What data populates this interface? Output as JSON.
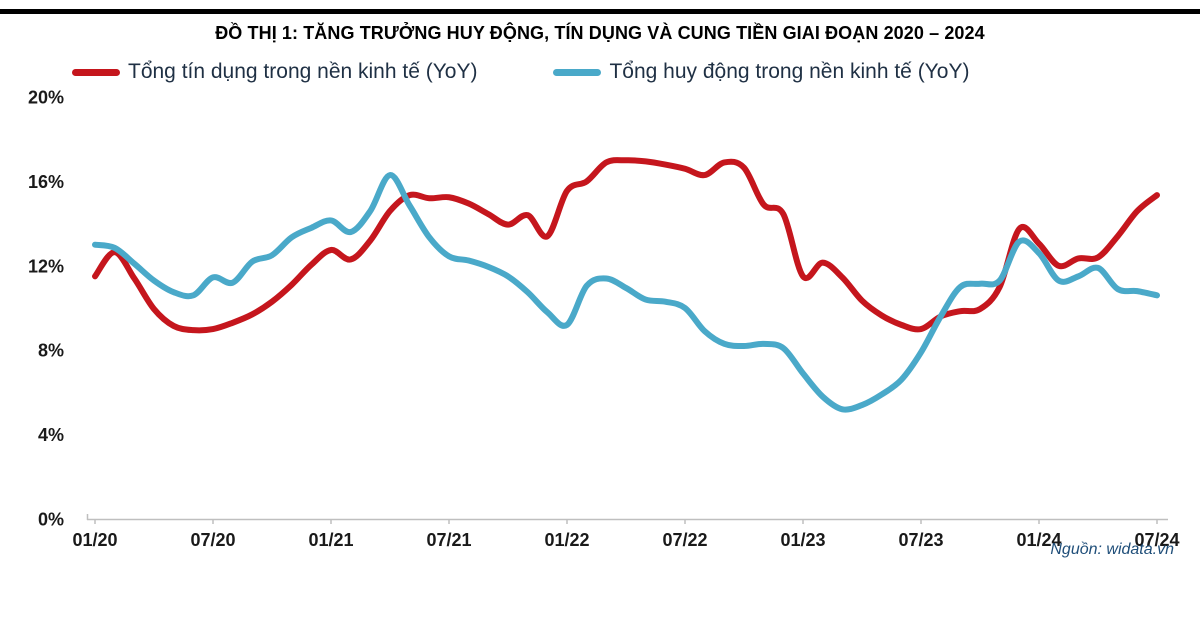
{
  "header": {
    "title": "ĐỒ THỊ 1: TĂNG TRƯỞNG HUY ĐỘNG, TÍN DỤNG VÀ CUNG TIỀN GIAI ĐOẠN 2020 – 2024"
  },
  "footer": {
    "source": "Nguồn: widata.vn"
  },
  "colors": {
    "credit_red": "#C5161D",
    "deposit_blue": "#4AA9C9",
    "axis_gray": "#BFBFBF",
    "tick_text": "#1A1A1A",
    "legend_text": "#1F3044",
    "source_text": "#1F4E79",
    "title_rule": "#000000"
  },
  "chart_data": {
    "type": "line",
    "title": "ĐỒ THỊ 1: TĂNG TRƯỞNG HUY ĐỘNG, TÍN DỤNG VÀ CUNG TIỀN GIAI ĐOẠN 2020 – 2024",
    "x_start": "01/2020",
    "x_end": "07/2024",
    "x_interval": "monthly",
    "x_points": 55,
    "x_tick_labels": [
      "01/20",
      "07/20",
      "01/21",
      "07/21",
      "01/22",
      "07/22",
      "01/23",
      "07/23",
      "01/24",
      "07/24"
    ],
    "x_tick_every": 6,
    "y_tick_labels": [
      "0%",
      "4%",
      "8%",
      "12%",
      "16%",
      "20%"
    ],
    "y_tick_values": [
      0,
      4,
      8,
      12,
      16,
      20
    ],
    "ylim": [
      0,
      20
    ],
    "grid": false,
    "legend_position": "top",
    "series": [
      {
        "name": "Tổng tín dụng trong nền kinh tế (YoY)",
        "color": "#C5161D",
        "values": [
          11.5,
          12.65,
          11.4,
          9.95,
          9.15,
          8.95,
          9.0,
          9.3,
          9.7,
          10.3,
          11.1,
          12.05,
          12.75,
          12.3,
          13.2,
          14.6,
          15.35,
          15.2,
          15.25,
          14.95,
          14.45,
          13.95,
          14.4,
          13.4,
          15.55,
          16.0,
          16.9,
          17.0,
          16.95,
          16.8,
          16.6,
          16.3,
          16.9,
          16.65,
          14.9,
          14.45,
          11.5,
          12.15,
          11.45,
          10.35,
          9.65,
          9.2,
          9.0,
          9.6,
          9.85,
          9.95,
          11.0,
          13.75,
          13.05,
          12.0,
          12.35,
          12.4,
          13.4,
          14.6,
          15.35
        ]
      },
      {
        "name": "Tổng huy động trong nền kinh tế (YoY)",
        "color": "#4AA9C9",
        "values": [
          13.0,
          12.85,
          12.1,
          11.3,
          10.75,
          10.6,
          11.45,
          11.2,
          12.2,
          12.5,
          13.35,
          13.8,
          14.15,
          13.6,
          14.6,
          16.3,
          14.85,
          13.35,
          12.45,
          12.25,
          11.95,
          11.5,
          10.75,
          9.8,
          9.2,
          11.05,
          11.4,
          10.95,
          10.4,
          10.3,
          10.0,
          8.9,
          8.3,
          8.2,
          8.3,
          8.1,
          6.9,
          5.8,
          5.2,
          5.4,
          5.9,
          6.6,
          7.9,
          9.6,
          11.0,
          11.15,
          11.3,
          13.15,
          12.6,
          11.3,
          11.5,
          11.9,
          10.9,
          10.8,
          10.6
        ]
      }
    ]
  }
}
